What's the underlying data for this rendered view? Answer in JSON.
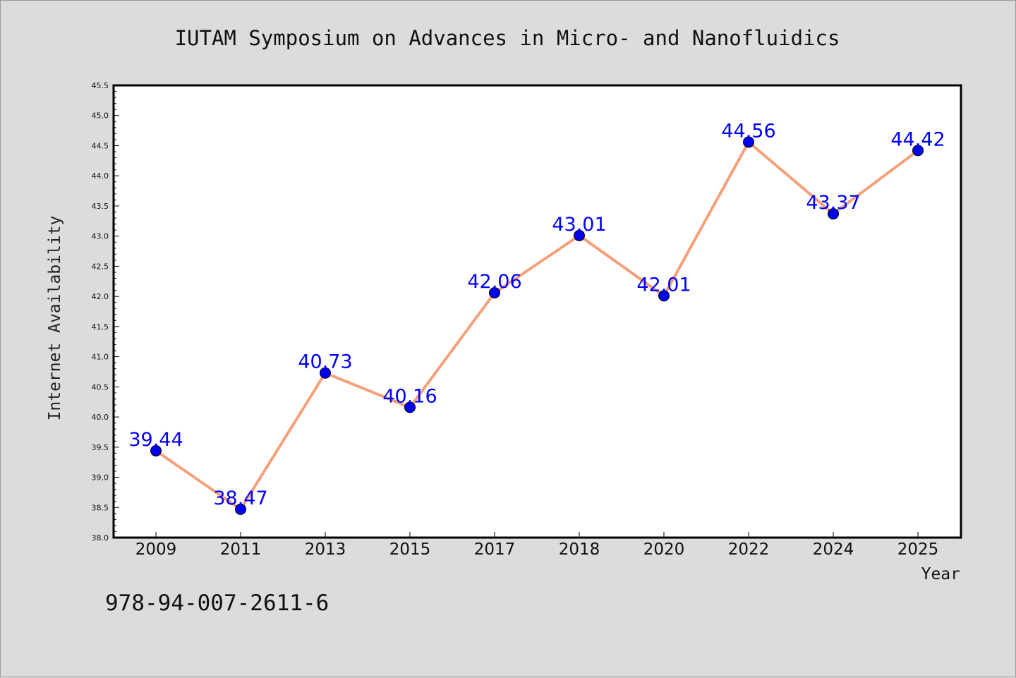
{
  "chart_data": {
    "type": "line",
    "title": "IUTAM Symposium on Advances in Micro- and Nanofluidics",
    "xlabel": "Year",
    "ylabel": "Internet Availability",
    "categories": [
      "2009",
      "2011",
      "2013",
      "2015",
      "2017",
      "2018",
      "2020",
      "2022",
      "2024",
      "2025"
    ],
    "series": [
      {
        "values": [
          39.44,
          38.47,
          40.73,
          40.16,
          42.06,
          43.01,
          42.01,
          44.56,
          43.37,
          44.42
        ],
        "labels": [
          "39.44",
          "38.47",
          "40.73",
          "40.16",
          "42.06",
          "43.01",
          "42.01",
          "44.56",
          "43.37",
          "44.42"
        ],
        "line_color": "#f5a07a",
        "marker_color": "#0000ee",
        "label_color": "#0000ff"
      }
    ],
    "ylim": [
      38.0,
      45.5
    ],
    "yticks": [
      "38.0",
      "38.5",
      "39.0",
      "39.5",
      "40.0",
      "40.5",
      "41.0",
      "41.5",
      "42.0",
      "42.5",
      "43.0",
      "43.5",
      "44.0",
      "44.5",
      "45.0",
      "45.5"
    ],
    "grid": false,
    "legend": "none"
  },
  "footer": {
    "isbn": "978-94-007-2611-6"
  },
  "colors": {
    "background": "#dcdcdc",
    "plot_background": "#ffffff",
    "axes": "#000000"
  }
}
